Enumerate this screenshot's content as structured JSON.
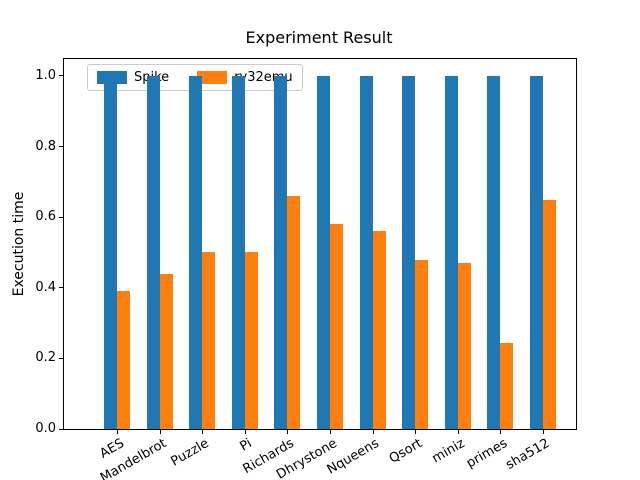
{
  "window": {
    "title": "Experiment Result"
  },
  "chart_data": {
    "type": "bar",
    "title": "Experiment Result",
    "xlabel": "",
    "ylabel": "Execution time",
    "categories": [
      "AES",
      "Mandelbrot",
      "Puzzle",
      "Pi",
      "Richards",
      "Dhrystone",
      "Nqueens",
      "Qsort",
      "miniz",
      "primes",
      "sha512"
    ],
    "series": [
      {
        "name": "Spike",
        "color": "#1f77b4",
        "values": [
          1.0,
          1.0,
          1.0,
          1.0,
          1.0,
          1.0,
          1.0,
          1.0,
          1.0,
          1.0,
          1.0
        ]
      },
      {
        "name": "rv32emu",
        "color": "#ff7f0e",
        "values": [
          0.39,
          0.44,
          0.5,
          0.5,
          0.66,
          0.58,
          0.56,
          0.48,
          0.47,
          0.245,
          0.65
        ]
      }
    ],
    "yticks": [
      "0.0",
      "0.2",
      "0.4",
      "0.6",
      "0.8",
      "1.0"
    ],
    "ylim": [
      0,
      1.048
    ],
    "grid": false,
    "legend": {
      "position": "upper left",
      "orientation": "horizontal",
      "entries": [
        "Spike",
        "rv32emu"
      ]
    },
    "colors": {
      "spike": "#1f77b4",
      "rv32emu": "#ff7f0e",
      "axis": "#000000",
      "background": "#ffffff",
      "legend_border": "#cccccc"
    }
  }
}
